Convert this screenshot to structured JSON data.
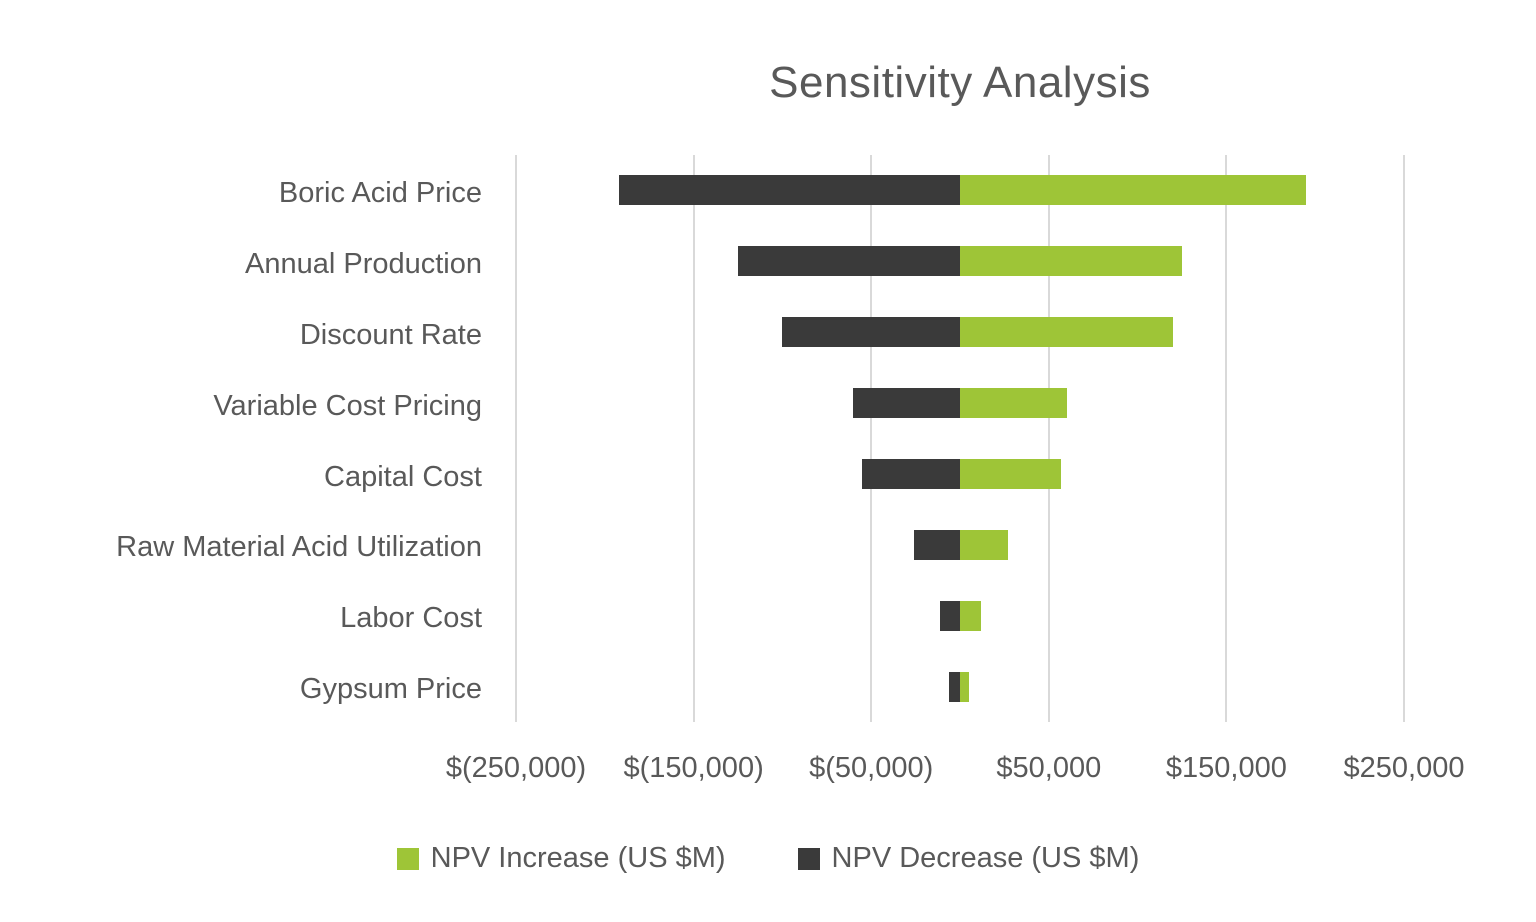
{
  "chart_data": {
    "type": "bar",
    "orientation": "horizontal",
    "title": "Sensitivity Analysis",
    "categories": [
      "Boric Acid Price",
      "Annual Production",
      "Discount Rate",
      "Variable Cost Pricing",
      "Capital Cost",
      "Raw Material Acid Utilization",
      "Labor Cost",
      "Gypsum Price"
    ],
    "series": [
      {
        "name": "NPV Increase (US $M)",
        "color": "#9ec537",
        "values": [
          195000,
          125000,
          120000,
          60000,
          57000,
          27000,
          12000,
          5000
        ]
      },
      {
        "name": "NPV Decrease (US $M)",
        "color": "#3a3a3a",
        "values": [
          -192000,
          -125000,
          -100000,
          -60000,
          -55000,
          -26000,
          -11000,
          -6000
        ]
      }
    ],
    "x_ticks": [
      {
        "value": -250000,
        "label": "$(250,000)"
      },
      {
        "value": -150000,
        "label": "$(150,000)"
      },
      {
        "value": -50000,
        "label": "$(50,000)"
      },
      {
        "value": 50000,
        "label": "$50,000"
      },
      {
        "value": 150000,
        "label": "$150,000"
      },
      {
        "value": 250000,
        "label": "$250,000"
      }
    ],
    "xlim": [
      -250000,
      250000
    ],
    "grid": "vertical",
    "legend_position": "bottom",
    "colors": {
      "grid": "#d9d9d9",
      "text": "#595959",
      "background": "#ffffff"
    }
  }
}
